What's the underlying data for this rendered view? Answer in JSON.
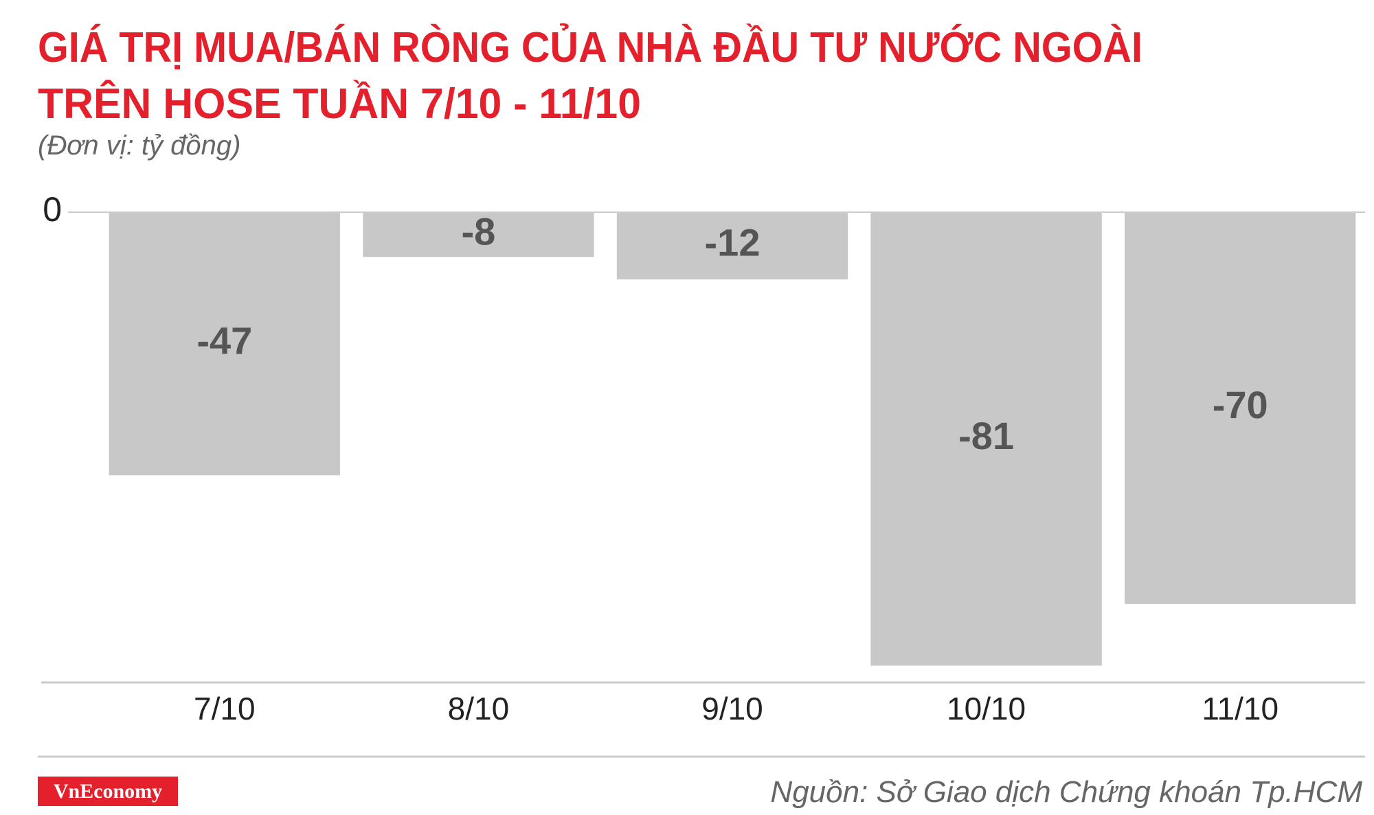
{
  "chart_data": {
    "type": "bar",
    "title": [
      "GIÁ TRỊ MUA/BÁN RÒNG CỦA NHÀ ĐẦU TƯ NƯỚC NGOÀI",
      "TRÊN HOSE TUẦN 7/10 - 11/10"
    ],
    "subtitle": "(Đơn vị: tỷ đồng)",
    "categories": [
      "7/10",
      "8/10",
      "9/10",
      "10/10",
      "11/10"
    ],
    "values": [
      -47,
      -8,
      -12,
      -81,
      -70
    ],
    "color": "#c9c8c8",
    "ylim": [
      -84,
      0
    ],
    "yticks": [
      0
    ],
    "source": "Nguồn: Sở Giao dịch Chứng khoán Tp.HCM",
    "logo": "VnEconomy"
  }
}
